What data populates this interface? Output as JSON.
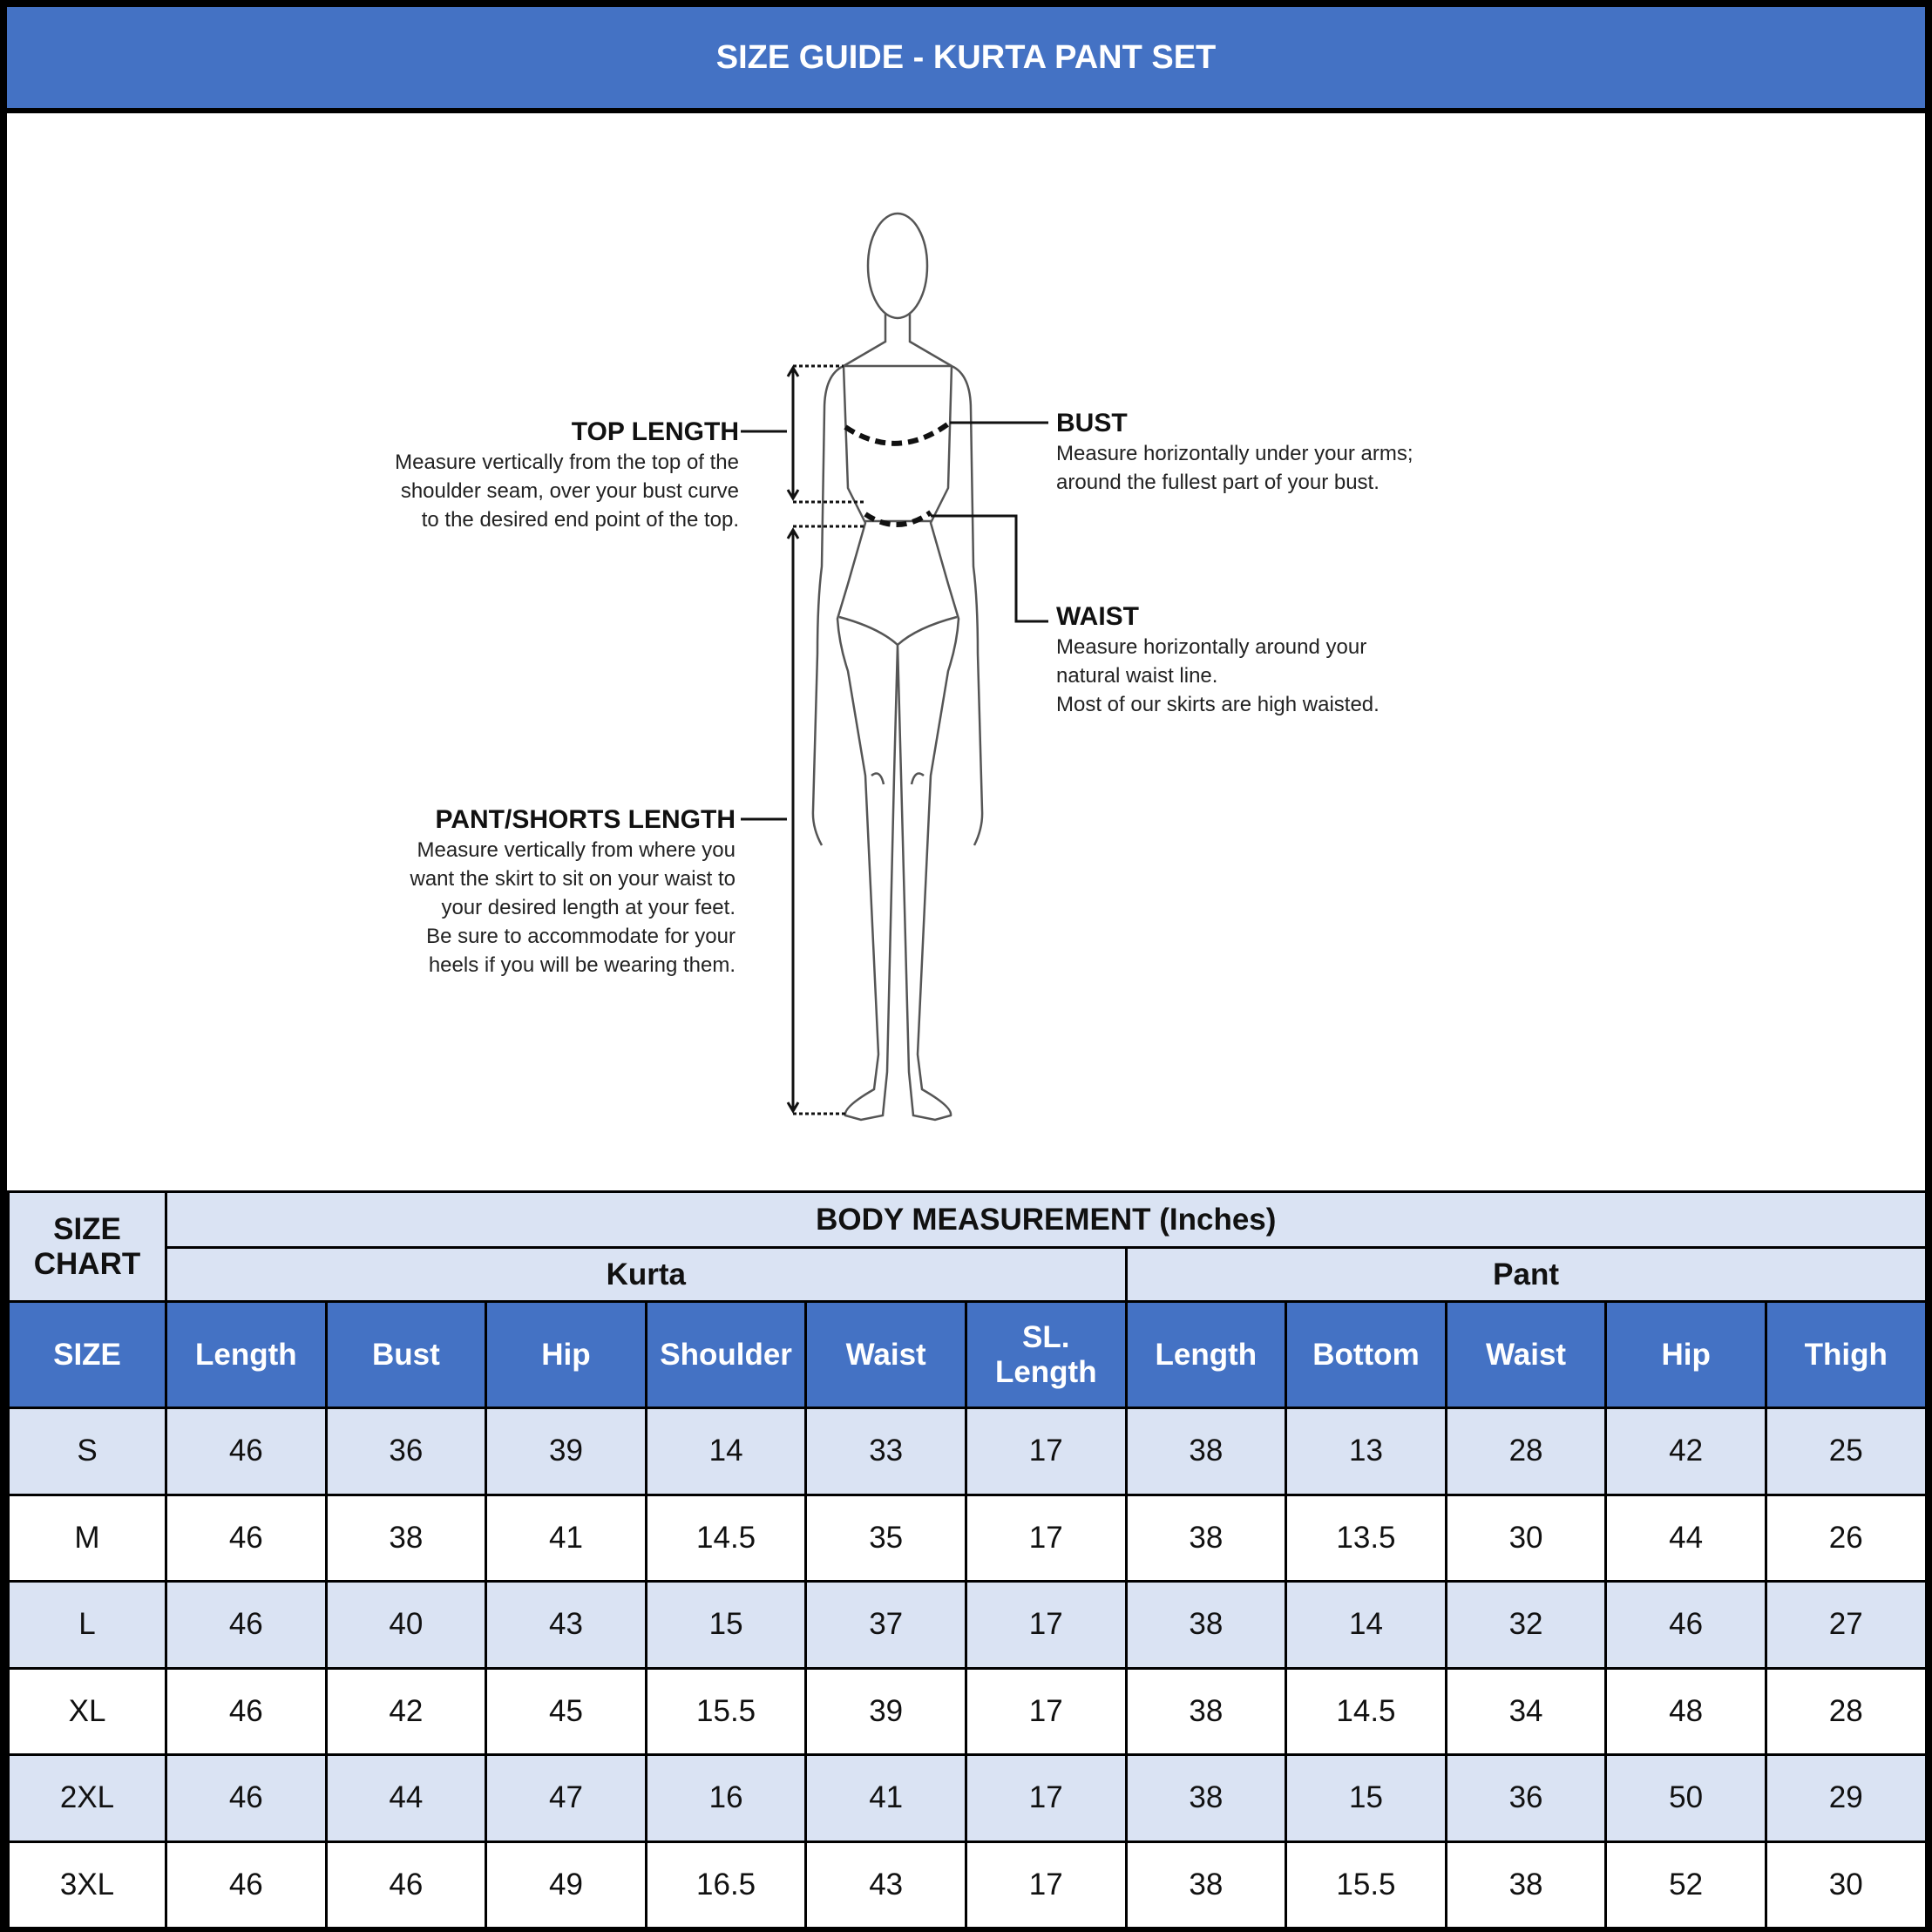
{
  "title": "SIZE GUIDE - KURTA PANT SET",
  "colors": {
    "header_blue": "#4472C4",
    "light_row": "#DAE3F3",
    "border": "#000000"
  },
  "figure": {
    "top_length": {
      "heading": "TOP LENGTH",
      "lines": [
        "Measure vertically from the top of the",
        "shoulder seam, over your bust curve",
        "to the desired end point of the top."
      ]
    },
    "bust": {
      "heading": "BUST",
      "lines": [
        "Measure horizontally under your arms;",
        "around the fullest part of your bust."
      ]
    },
    "waist": {
      "heading": "WAIST",
      "lines": [
        "Measure horizontally around your",
        "natural waist line.",
        "Most of our skirts are high waisted."
      ]
    },
    "pant_length": {
      "heading": "PANT/SHORTS LENGTH",
      "lines": [
        "Measure vertically from where you",
        "want the skirt to sit on your waist to",
        "your desired length at your feet.",
        "Be sure to accommodate for your",
        "heels if you will be wearing them."
      ]
    }
  },
  "table": {
    "size_chart_label": "SIZE CHART",
    "body_measurement_label": "BODY MEASUREMENT (Inches)",
    "groups": [
      "Kurta",
      "Pant"
    ],
    "columns": [
      "SIZE",
      "Length",
      "Bust",
      "Hip",
      "Shoulder",
      "Waist",
      "SL. Length",
      "Length",
      "Bottom",
      "Waist",
      "Hip",
      "Thigh"
    ],
    "rows": [
      [
        "S",
        "46",
        "36",
        "39",
        "14",
        "33",
        "17",
        "38",
        "13",
        "28",
        "42",
        "25"
      ],
      [
        "M",
        "46",
        "38",
        "41",
        "14.5",
        "35",
        "17",
        "38",
        "13.5",
        "30",
        "44",
        "26"
      ],
      [
        "L",
        "46",
        "40",
        "43",
        "15",
        "37",
        "17",
        "38",
        "14",
        "32",
        "46",
        "27"
      ],
      [
        "XL",
        "46",
        "42",
        "45",
        "15.5",
        "39",
        "17",
        "38",
        "14.5",
        "34",
        "48",
        "28"
      ],
      [
        "2XL",
        "46",
        "44",
        "47",
        "16",
        "41",
        "17",
        "38",
        "15",
        "36",
        "50",
        "29"
      ],
      [
        "3XL",
        "46",
        "46",
        "49",
        "16.5",
        "43",
        "17",
        "38",
        "15.5",
        "38",
        "52",
        "30"
      ]
    ]
  }
}
